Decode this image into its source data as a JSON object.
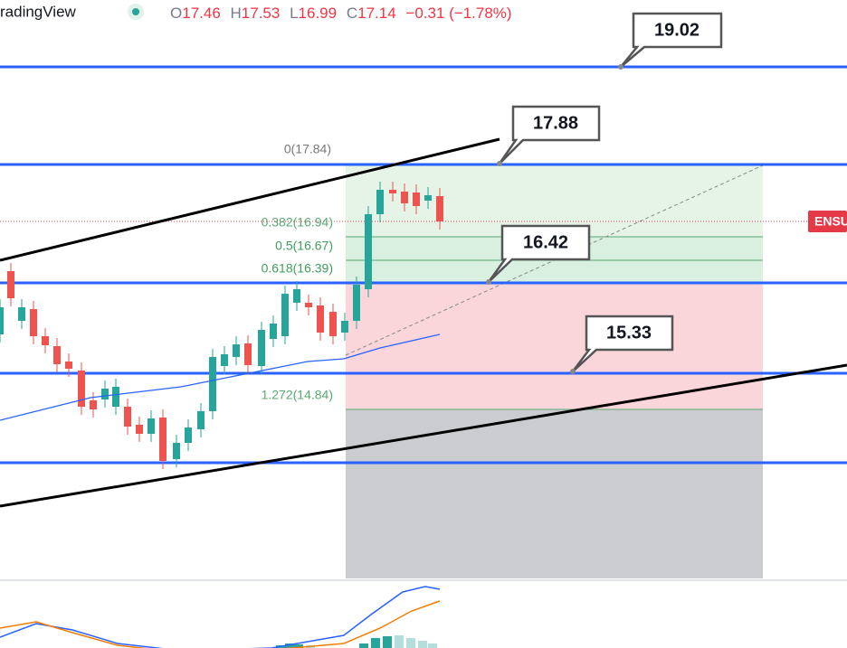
{
  "header": {
    "brand": "radingView",
    "ohlc": [
      {
        "key": "O",
        "value": "17.46"
      },
      {
        "key": "H",
        "value": "17.53"
      },
      {
        "key": "L",
        "value": "16.99"
      },
      {
        "key": "C",
        "value": "17.14"
      }
    ],
    "change": "−0.31 (−1.78%)"
  },
  "fib_levels": [
    "0(17.84)",
    "0.382(16.94)",
    "0.5(16.67)",
    "0.618(16.39)",
    "1.272(14.84)"
  ],
  "price_callouts": [
    "19.02",
    "17.88",
    "16.42",
    "15.33"
  ],
  "symbol_tag": "ENSU"
}
